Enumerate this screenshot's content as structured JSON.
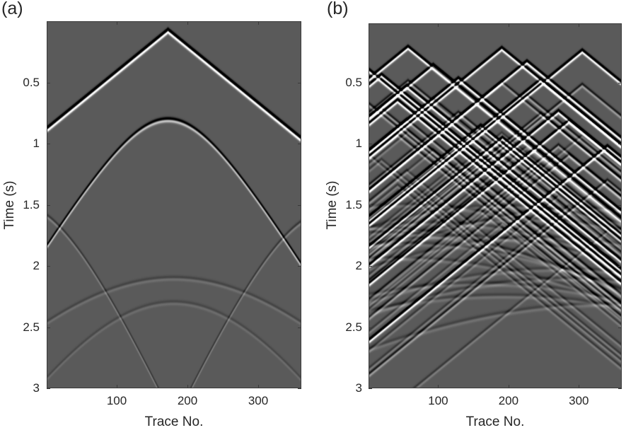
{
  "chart_data": [
    {
      "type": "heatmap",
      "panel_label": "(a)",
      "xlabel": "Trace No.",
      "ylabel": "Time (s)",
      "xlim": [
        1,
        361
      ],
      "ylim": [
        0,
        3
      ],
      "xticks": [
        "100",
        "200",
        "300"
      ],
      "xtick_values": [
        100,
        200,
        300
      ],
      "yticks": [
        "0.5",
        "1",
        "1.5",
        "2",
        "2.5",
        "3"
      ],
      "ytick_values": [
        0.5,
        1,
        1.5,
        2,
        2.5,
        3
      ],
      "colormap": "gray",
      "events": [
        {
          "kind": "linear-v",
          "apex_trace": 172,
          "apex_time": 0.07,
          "slope": 0.0047,
          "amp": 1.0
        },
        {
          "kind": "hyperbola",
          "apex_trace": 172,
          "apex_time": 0.8,
          "velocity": 520,
          "amp": 0.35
        },
        {
          "kind": "hyperbola",
          "apex_trace": -40,
          "apex_time": 1.5,
          "velocity": 380,
          "amp": 0.12
        },
        {
          "kind": "hyperbola",
          "apex_trace": 400,
          "apex_time": 1.56,
          "velocity": 380,
          "amp": 0.12
        },
        {
          "kind": "hyperbola",
          "apex_trace": 180,
          "apex_time": 2.1,
          "velocity": 700,
          "amp": 0.07
        },
        {
          "kind": "hyperbola",
          "apex_trace": 180,
          "apex_time": 2.3,
          "velocity": 500,
          "amp": 0.06
        }
      ]
    },
    {
      "type": "heatmap",
      "panel_label": "(b)",
      "xlabel": "Trace No.",
      "ylabel": "Time (s)",
      "xlim": [
        1,
        361
      ],
      "ylim": [
        0,
        3
      ],
      "xticks": [
        "100",
        "200",
        "300"
      ],
      "xtick_values": [
        100,
        200,
        300
      ],
      "yticks": [
        "0.5",
        "1",
        "1.5",
        "2",
        "2.5",
        "3"
      ],
      "ytick_values": [
        0.5,
        1,
        1.5,
        2,
        2.5,
        3
      ],
      "colormap": "gray",
      "sources": [
        [
          56,
          0.19
        ],
        [
          190,
          0.2
        ],
        [
          305,
          0.22
        ],
        [
          92,
          0.34
        ],
        [
          226,
          0.31
        ],
        [
          0,
          0.38
        ],
        [
          18,
          0.42
        ],
        [
          54,
          0.51
        ],
        [
          128,
          0.45
        ],
        [
          246,
          0.46
        ],
        [
          41,
          0.63
        ],
        [
          160,
          0.84
        ],
        [
          271,
          0.72
        ],
        [
          286,
          0.8
        ],
        [
          191,
          0.94
        ],
        [
          341,
          1.01
        ]
      ]
    }
  ]
}
